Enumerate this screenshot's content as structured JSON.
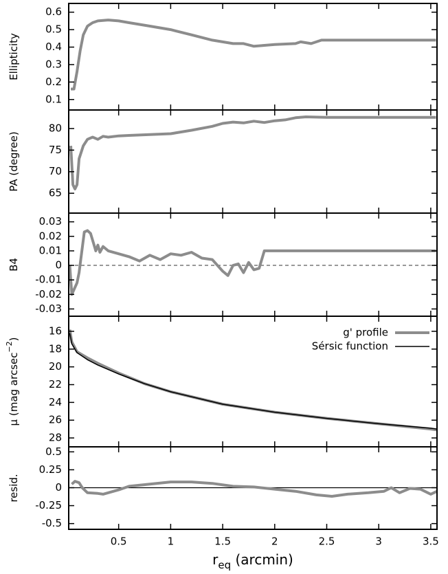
{
  "chart_data": [
    {
      "type": "line",
      "y_label": "Ellipticity",
      "xlim": [
        0.02,
        3.56
      ],
      "ylim": [
        0.04,
        0.65
      ],
      "xticks": [
        0.5,
        1,
        1.5,
        2,
        2.5,
        3,
        3.5
      ],
      "yticks": [
        0.1,
        0.2,
        0.3,
        0.4,
        0.5,
        0.6
      ],
      "series": [
        {
          "color": "#8c8c8c",
          "line_width": 4,
          "x": [
            0.04,
            0.07,
            0.1,
            0.13,
            0.16,
            0.2,
            0.25,
            0.3,
            0.4,
            0.5,
            0.6,
            0.7,
            0.8,
            1.0,
            1.2,
            1.4,
            1.5,
            1.6,
            1.7,
            1.8,
            1.9,
            2.0,
            2.2,
            2.25,
            2.35,
            2.45,
            2.6,
            3.0,
            3.55
          ],
          "values": [
            0.16,
            0.16,
            0.26,
            0.38,
            0.47,
            0.52,
            0.54,
            0.55,
            0.555,
            0.55,
            0.54,
            0.53,
            0.52,
            0.5,
            0.47,
            0.44,
            0.43,
            0.42,
            0.42,
            0.405,
            0.41,
            0.415,
            0.42,
            0.43,
            0.42,
            0.44,
            0.44,
            0.44,
            0.44
          ]
        }
      ]
    },
    {
      "type": "line",
      "y_label": "PA (degree)",
      "xlim": [
        0.02,
        3.56
      ],
      "ylim": [
        60.4,
        84.3
      ],
      "xticks": [
        0.5,
        1,
        1.5,
        2,
        2.5,
        3,
        3.5
      ],
      "yticks": [
        65,
        70,
        75,
        80
      ],
      "series": [
        {
          "color": "#8c8c8c",
          "line_width": 4,
          "x": [
            0.04,
            0.06,
            0.08,
            0.1,
            0.12,
            0.16,
            0.2,
            0.25,
            0.3,
            0.35,
            0.4,
            0.5,
            0.6,
            0.8,
            1.0,
            1.2,
            1.4,
            1.5,
            1.6,
            1.7,
            1.8,
            1.9,
            2.0,
            2.1,
            2.2,
            2.3,
            2.5,
            3.0,
            3.55
          ],
          "values": [
            76,
            67,
            66,
            67,
            73,
            76,
            77.5,
            78,
            77.5,
            78.2,
            78,
            78.3,
            78.4,
            78.6,
            78.8,
            79.6,
            80.5,
            81.2,
            81.5,
            81.3,
            81.7,
            81.4,
            81.8,
            82,
            82.5,
            82.7,
            82.6,
            82.6,
            82.6
          ]
        }
      ]
    },
    {
      "type": "line",
      "y_label": "B4",
      "xlim": [
        0.02,
        3.56
      ],
      "ylim": [
        -0.035,
        0.036
      ],
      "reference_line": 0,
      "xticks": [
        0.5,
        1,
        1.5,
        2,
        2.5,
        3,
        3.5
      ],
      "yticks": [
        -0.03,
        -0.02,
        -0.01,
        0,
        0.01,
        0.02,
        0.03
      ],
      "series": [
        {
          "color": "#8c8c8c",
          "line_width": 4,
          "x": [
            0.03,
            0.05,
            0.1,
            0.12,
            0.17,
            0.2,
            0.23,
            0.26,
            0.28,
            0.3,
            0.32,
            0.35,
            0.4,
            0.5,
            0.6,
            0.7,
            0.8,
            0.9,
            1.0,
            1.1,
            1.2,
            1.3,
            1.4,
            1.45,
            1.5,
            1.55,
            1.6,
            1.65,
            1.7,
            1.75,
            1.8,
            1.85,
            1.9,
            2.0,
            3.55
          ],
          "values": [
            0,
            -0.02,
            -0.012,
            -0.005,
            0.023,
            0.024,
            0.022,
            0.015,
            0.01,
            0.014,
            0.009,
            0.013,
            0.01,
            0.008,
            0.006,
            0.003,
            0.007,
            0.004,
            0.008,
            0.007,
            0.009,
            0.005,
            0.004,
            0,
            -0.004,
            -0.007,
            0,
            0.001,
            -0.005,
            0.002,
            -0.003,
            -0.002,
            0.01,
            0.01,
            0.01
          ]
        }
      ]
    },
    {
      "type": "line",
      "y_label": "μ (mag arcsec",
      "y_label_sup": "−2",
      "y_label_end": ")",
      "xlim": [
        0.02,
        3.56
      ],
      "ylim": [
        29,
        14.3
      ],
      "xticks": [
        0.5,
        1,
        1.5,
        2,
        2.5,
        3,
        3.5
      ],
      "yticks": [
        16,
        18,
        20,
        22,
        24,
        26,
        28
      ],
      "legend": "top-right",
      "series": [
        {
          "name": "g' profile",
          "color": "#8c8c8c",
          "line_width": 4,
          "x": [
            0.03,
            0.05,
            0.1,
            0.2,
            0.3,
            0.5,
            0.75,
            1.0,
            1.5,
            2.0,
            2.5,
            3.0,
            3.5,
            3.56
          ],
          "values": [
            15.8,
            17.2,
            18.3,
            19,
            19.6,
            20.7,
            21.9,
            22.8,
            24.2,
            25.1,
            25.8,
            26.4,
            27,
            27.1
          ]
        },
        {
          "name": "Sérsic function",
          "color": "#000000",
          "line_width": 1.5,
          "x": [
            0.03,
            0.05,
            0.1,
            0.2,
            0.3,
            0.5,
            0.75,
            1.0,
            1.5,
            2.0,
            2.5,
            3.0,
            3.5,
            3.56
          ],
          "values": [
            16.2,
            17.4,
            18.4,
            19.2,
            19.8,
            20.8,
            21.9,
            22.8,
            24.2,
            25.1,
            25.8,
            26.4,
            26.9,
            27
          ]
        }
      ]
    },
    {
      "type": "line",
      "y_label": "resid.",
      "xlim": [
        0.02,
        3.56
      ],
      "ylim": [
        -0.58,
        0.57
      ],
      "reference_line": 0,
      "x_label": "r",
      "x_label_sub": "eq",
      "x_label_end": " (arcmin)",
      "xticks": [
        0.5,
        1,
        1.5,
        2,
        2.5,
        3,
        3.5
      ],
      "yticks": [
        -0.5,
        -0.25,
        0,
        0.25,
        0.5
      ],
      "series": [
        {
          "color": "#8c8c8c",
          "line_width": 4,
          "x": [
            0.05,
            0.08,
            0.12,
            0.15,
            0.2,
            0.3,
            0.35,
            0.5,
            0.6,
            0.8,
            1.0,
            1.2,
            1.4,
            1.6,
            1.8,
            2.0,
            2.2,
            2.4,
            2.55,
            2.7,
            2.9,
            3.05,
            3.12,
            3.2,
            3.3,
            3.4,
            3.5,
            3.56
          ],
          "values": [
            0.05,
            0.09,
            0.07,
            0,
            -0.07,
            -0.08,
            -0.09,
            -0.03,
            0.02,
            0.05,
            0.08,
            0.08,
            0.06,
            0.02,
            0.01,
            -0.02,
            -0.05,
            -0.1,
            -0.12,
            -0.09,
            -0.07,
            -0.05,
            0,
            -0.07,
            -0.01,
            -0.02,
            -0.09,
            -0.05
          ]
        }
      ]
    }
  ]
}
